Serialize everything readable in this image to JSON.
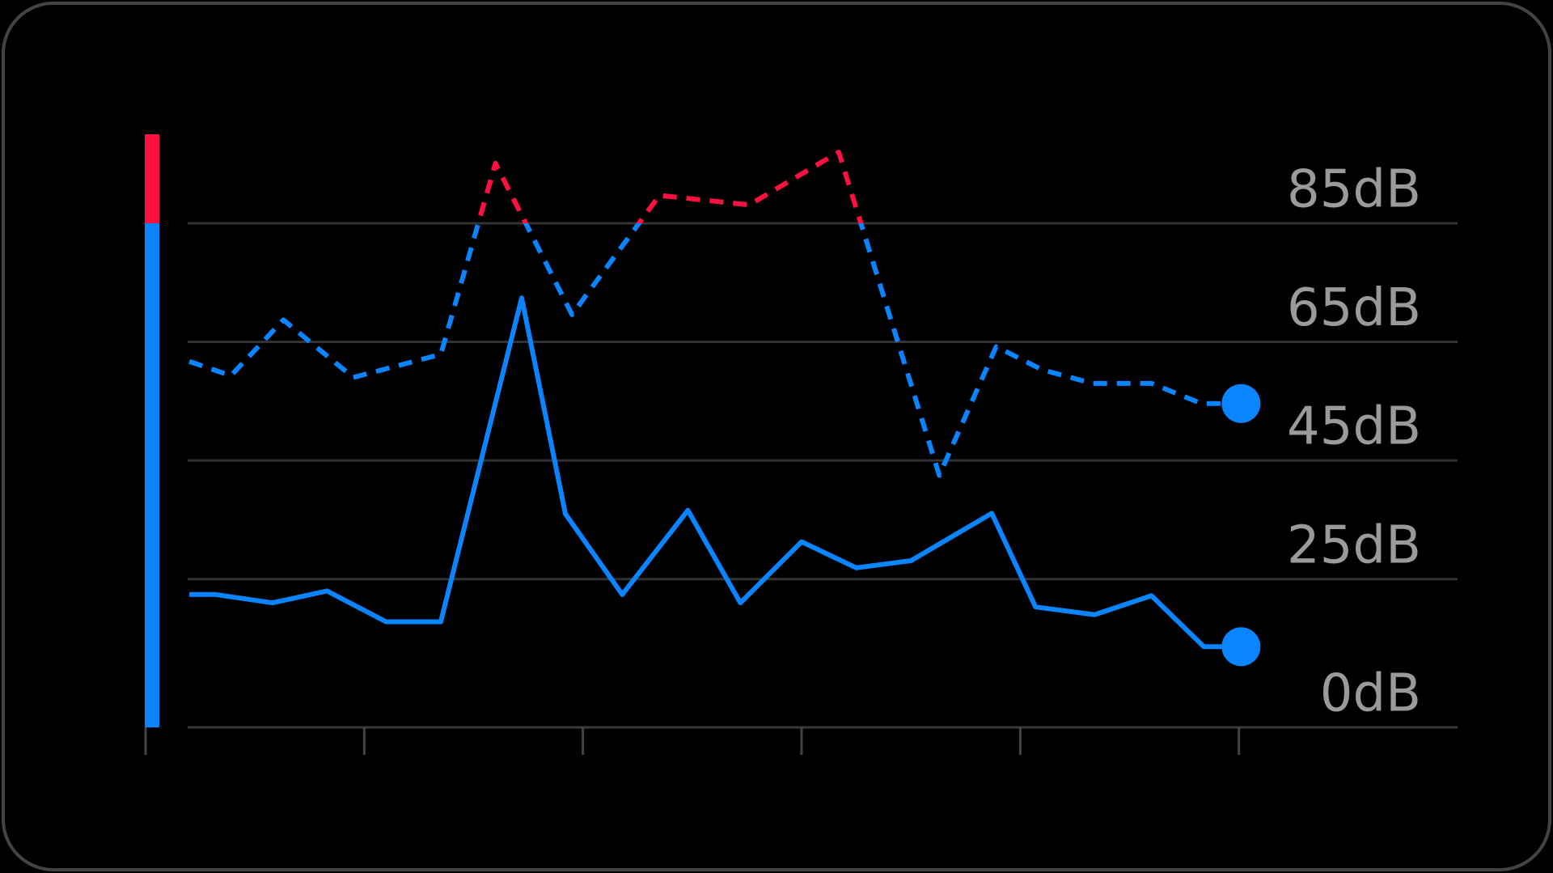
{
  "chart_data": {
    "type": "line",
    "xlim": [
      0,
      6
    ],
    "xticks": [
      0,
      1,
      2,
      3,
      4,
      5
    ],
    "ylim": [
      0,
      100
    ],
    "yticks": [
      {
        "value": 0,
        "label": "0dB"
      },
      {
        "value": 25,
        "label": "25dB"
      },
      {
        "value": 45,
        "label": "45dB"
      },
      {
        "value": 65,
        "label": "65dB"
      },
      {
        "value": 85,
        "label": "85dB"
      }
    ],
    "grid": true,
    "threshold": 85,
    "threshold_color": "#ff1040",
    "end_marker": true,
    "series": [
      {
        "color": "#0a84ff",
        "dashed": true,
        "x": [
          0.2,
          0.39,
          0.63,
          0.95,
          1.35,
          1.6,
          1.95,
          2.35,
          2.76,
          3.17,
          3.63,
          3.89,
          4.1,
          4.33,
          4.6,
          4.83,
          5.01
        ],
        "values": [
          61.7,
          59.3,
          68.7,
          59,
          62.9,
          95.1,
          69.6,
          89.7,
          88.1,
          97,
          42.5,
          64.2,
          60.3,
          58,
          58,
          54.6,
          54.6
        ]
      },
      {
        "color": "#0a84ff",
        "dashed": false,
        "x": [
          0.2,
          0.32,
          0.58,
          0.83,
          1.1,
          1.35,
          1.72,
          1.92,
          2.18,
          2.48,
          2.72,
          3,
          3.25,
          3.5,
          3.87,
          4.07,
          4.34,
          4.6,
          4.84,
          5.01
        ],
        "values": [
          22.4,
          22.4,
          21,
          23,
          17.8,
          17.8,
          72.4,
          36,
          22.4,
          36.6,
          21,
          31.3,
          26.9,
          28.1,
          36.1,
          20.3,
          19,
          22.2,
          13.6,
          13.6
        ]
      }
    ]
  }
}
